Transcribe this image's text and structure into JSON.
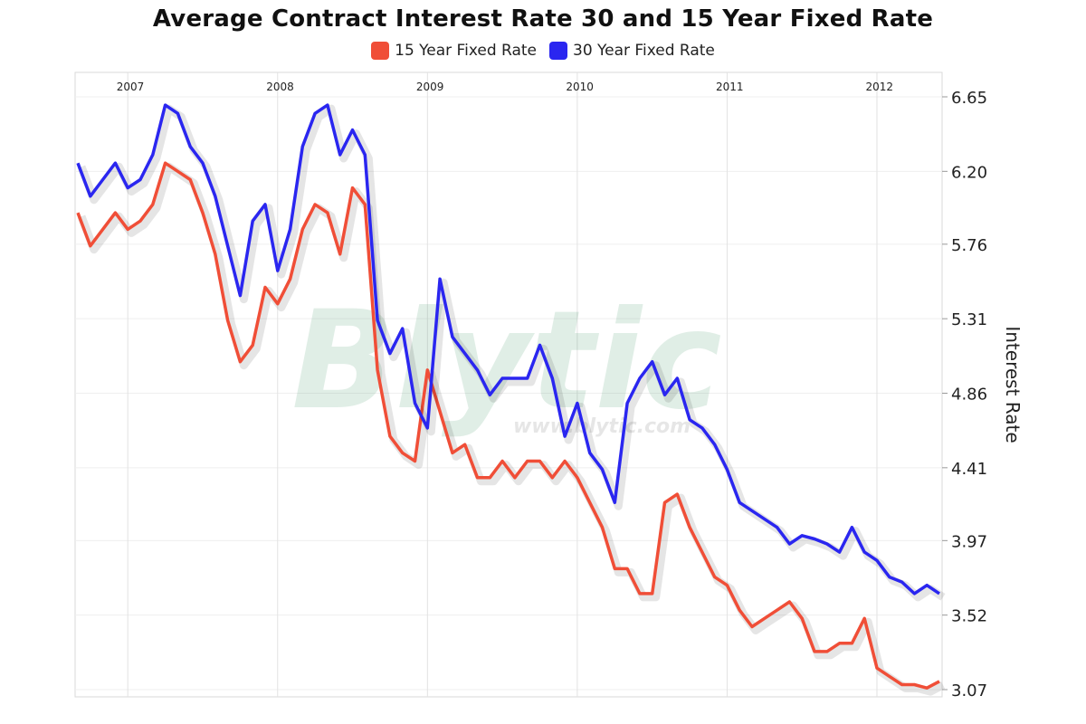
{
  "chart_data": {
    "type": "line",
    "title": "Average Contract Interest Rate 30 and 15 Year Fixed Rate",
    "ylabel": "Interest Rate",
    "xlabel": "",
    "x_ticks": [
      "2007",
      "2008",
      "2009",
      "2010",
      "2011",
      "2012"
    ],
    "y_ticks": [
      "6.65",
      "6.20",
      "5.76",
      "5.31",
      "4.86",
      "4.41",
      "3.97",
      "3.52",
      "3.07"
    ],
    "ylim": [
      3.07,
      6.65
    ],
    "xlim": [
      "2006-09",
      "2012-06"
    ],
    "grid": true,
    "legend_position": "top-center",
    "watermark": "Blytic www.blytic.com",
    "series": [
      {
        "name": "15 Year Fixed Rate",
        "color": "#f04e37",
        "x": [
          "2006-09",
          "2006-10",
          "2006-11",
          "2006-12",
          "2007-01",
          "2007-02",
          "2007-03",
          "2007-04",
          "2007-05",
          "2007-06",
          "2007-07",
          "2007-08",
          "2007-09",
          "2007-10",
          "2007-11",
          "2007-12",
          "2008-01",
          "2008-02",
          "2008-03",
          "2008-04",
          "2008-05",
          "2008-06",
          "2008-07",
          "2008-08",
          "2008-09",
          "2008-10",
          "2008-11",
          "2008-12",
          "2009-01",
          "2009-02",
          "2009-03",
          "2009-04",
          "2009-05",
          "2009-06",
          "2009-07",
          "2009-08",
          "2009-09",
          "2009-10",
          "2009-11",
          "2009-12",
          "2010-01",
          "2010-02",
          "2010-03",
          "2010-04",
          "2010-05",
          "2010-06",
          "2010-07",
          "2010-08",
          "2010-09",
          "2010-10",
          "2010-11",
          "2010-12",
          "2011-01",
          "2011-02",
          "2011-03",
          "2011-04",
          "2011-05",
          "2011-06",
          "2011-07",
          "2011-08",
          "2011-09",
          "2011-10",
          "2011-11",
          "2011-12",
          "2012-01",
          "2012-02",
          "2012-03",
          "2012-04",
          "2012-05",
          "2012-06"
        ],
        "values": [
          5.95,
          5.75,
          5.85,
          5.95,
          5.85,
          5.9,
          6.0,
          6.25,
          6.2,
          6.15,
          5.95,
          5.7,
          5.3,
          5.05,
          5.15,
          5.5,
          5.4,
          5.55,
          5.85,
          6.0,
          5.95,
          5.7,
          6.1,
          6.0,
          5.0,
          4.6,
          4.5,
          4.45,
          5.0,
          4.75,
          4.5,
          4.55,
          4.35,
          4.35,
          4.45,
          4.35,
          4.45,
          4.45,
          4.35,
          4.45,
          4.35,
          4.2,
          4.05,
          3.8,
          3.8,
          3.65,
          3.65,
          4.2,
          4.25,
          4.05,
          3.9,
          3.75,
          3.7,
          3.55,
          3.45,
          3.5,
          3.55,
          3.6,
          3.5,
          3.3,
          3.3,
          3.35,
          3.35,
          3.5,
          3.2,
          3.15,
          3.1,
          3.1,
          3.08,
          3.12
        ]
      },
      {
        "name": "30 Year Fixed Rate",
        "color": "#2a26f0",
        "x": [
          "2006-09",
          "2006-10",
          "2006-11",
          "2006-12",
          "2007-01",
          "2007-02",
          "2007-03",
          "2007-04",
          "2007-05",
          "2007-06",
          "2007-07",
          "2007-08",
          "2007-09",
          "2007-10",
          "2007-11",
          "2007-12",
          "2008-01",
          "2008-02",
          "2008-03",
          "2008-04",
          "2008-05",
          "2008-06",
          "2008-07",
          "2008-08",
          "2008-09",
          "2008-10",
          "2008-11",
          "2008-12",
          "2009-01",
          "2009-02",
          "2009-03",
          "2009-04",
          "2009-05",
          "2009-06",
          "2009-07",
          "2009-08",
          "2009-09",
          "2009-10",
          "2009-11",
          "2009-12",
          "2010-01",
          "2010-02",
          "2010-03",
          "2010-04",
          "2010-05",
          "2010-06",
          "2010-07",
          "2010-08",
          "2010-09",
          "2010-10",
          "2010-11",
          "2010-12",
          "2011-01",
          "2011-02",
          "2011-03",
          "2011-04",
          "2011-05",
          "2011-06",
          "2011-07",
          "2011-08",
          "2011-09",
          "2011-10",
          "2011-11",
          "2011-12",
          "2012-01",
          "2012-02",
          "2012-03",
          "2012-04",
          "2012-05",
          "2012-06"
        ],
        "values": [
          6.25,
          6.05,
          6.15,
          6.25,
          6.1,
          6.15,
          6.3,
          6.6,
          6.55,
          6.35,
          6.25,
          6.05,
          5.75,
          5.45,
          5.9,
          6.0,
          5.6,
          5.85,
          6.35,
          6.55,
          6.6,
          6.3,
          6.45,
          6.3,
          5.3,
          5.1,
          5.25,
          4.8,
          4.65,
          5.55,
          5.2,
          5.1,
          5.0,
          4.85,
          4.95,
          4.95,
          4.95,
          5.15,
          4.95,
          4.6,
          4.8,
          4.5,
          4.4,
          4.2,
          4.8,
          4.95,
          5.05,
          4.85,
          4.95,
          4.7,
          4.65,
          4.55,
          4.4,
          4.2,
          4.15,
          4.1,
          4.05,
          3.95,
          4.0,
          3.98,
          3.95,
          3.9,
          4.05,
          3.9,
          3.85,
          3.75,
          3.72,
          3.65,
          3.7,
          3.65
        ]
      }
    ]
  }
}
